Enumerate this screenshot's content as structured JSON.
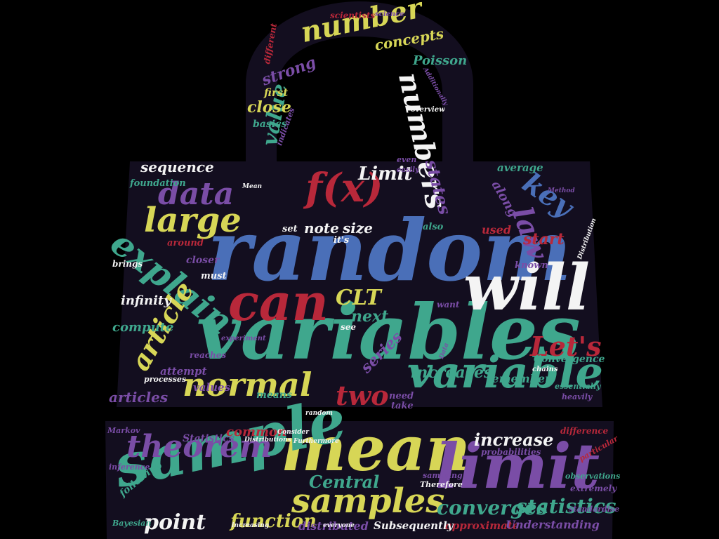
{
  "colors": {
    "background": "#000000",
    "bag_fill": "#130e1f",
    "palette": {
      "blue": "#4a6fb8",
      "red": "#b8283a",
      "yellow": "#d7d656",
      "teal": "#3fa78d",
      "purple": "#7a4da6",
      "white": "#f4f4f4"
    }
  },
  "words": [
    {
      "text": "random",
      "color": "blue"
    },
    {
      "text": "variables",
      "color": "teal"
    },
    {
      "text": "will",
      "color": "white"
    },
    {
      "text": "mean",
      "color": "yellow"
    },
    {
      "text": "limit",
      "color": "purple"
    },
    {
      "text": "sample",
      "color": "teal"
    },
    {
      "text": "can",
      "color": "red"
    },
    {
      "text": "variable",
      "color": "teal"
    },
    {
      "text": "samples",
      "color": "yellow"
    },
    {
      "text": "normal",
      "color": "yellow"
    },
    {
      "text": "theorem",
      "color": "purple"
    },
    {
      "text": "explain",
      "color": "teal"
    },
    {
      "text": "large",
      "color": "yellow"
    },
    {
      "text": "data",
      "color": "purple"
    },
    {
      "text": "numbers",
      "color": "white"
    },
    {
      "text": "number",
      "color": "yellow"
    },
    {
      "text": "law",
      "color": "purple"
    },
    {
      "text": "key",
      "color": "blue"
    },
    {
      "text": "f(x)",
      "color": "red"
    },
    {
      "text": "Let's",
      "color": "red"
    },
    {
      "text": "article",
      "color": "yellow"
    },
    {
      "text": "two",
      "color": "red"
    },
    {
      "text": "CLT",
      "color": "yellow"
    },
    {
      "text": "converges",
      "color": "teal"
    },
    {
      "text": "statistics",
      "color": "teal"
    },
    {
      "text": "point",
      "color": "white"
    },
    {
      "text": "function",
      "color": "yellow"
    },
    {
      "text": "Central",
      "color": "teal"
    },
    {
      "text": "increase",
      "color": "white"
    },
    {
      "text": "value",
      "color": "teal"
    },
    {
      "text": "Limit",
      "color": "white"
    },
    {
      "text": "series",
      "color": "purple"
    },
    {
      "text": "increases",
      "color": "teal"
    },
    {
      "text": "next",
      "color": "teal"
    },
    {
      "text": "states",
      "color": "purple"
    },
    {
      "text": "size",
      "color": "white"
    },
    {
      "text": "note",
      "color": "white"
    },
    {
      "text": "start",
      "color": "red"
    },
    {
      "text": "concepts",
      "color": "yellow"
    },
    {
      "text": "strong",
      "color": "purple"
    },
    {
      "text": "close",
      "color": "yellow"
    },
    {
      "text": "Poisson",
      "color": "teal"
    },
    {
      "text": "sequence",
      "color": "white"
    },
    {
      "text": "infinity",
      "color": "white"
    },
    {
      "text": "compute",
      "color": "teal"
    },
    {
      "text": "articles",
      "color": "purple"
    },
    {
      "text": "common",
      "color": "red"
    },
    {
      "text": "Statistics",
      "color": "purple"
    },
    {
      "text": "distributed",
      "color": "purple"
    },
    {
      "text": "approximate",
      "color": "red"
    },
    {
      "text": "Subsequently",
      "color": "white"
    },
    {
      "text": "Understanding",
      "color": "purple"
    },
    {
      "text": "remember",
      "color": "teal"
    },
    {
      "text": "Convergence",
      "color": "teal"
    },
    {
      "text": "average",
      "color": "teal"
    },
    {
      "text": "along",
      "color": "purple"
    },
    {
      "text": "used",
      "color": "red"
    },
    {
      "text": "foundation",
      "color": "teal"
    },
    {
      "text": "means",
      "color": "teal"
    },
    {
      "text": "values",
      "color": "purple"
    },
    {
      "text": "attempt",
      "color": "purple"
    },
    {
      "text": "first",
      "color": "yellow"
    },
    {
      "text": "basics",
      "color": "teal"
    },
    {
      "text": "scientists",
      "color": "red"
    },
    {
      "text": "science",
      "color": "purple"
    },
    {
      "text": "different",
      "color": "red"
    },
    {
      "text": "also",
      "color": "teal"
    },
    {
      "text": "set",
      "color": "white"
    },
    {
      "text": "it's",
      "color": "white"
    },
    {
      "text": "must",
      "color": "white"
    },
    {
      "text": "closer",
      "color": "purple"
    },
    {
      "text": "around",
      "color": "red"
    },
    {
      "text": "brings",
      "color": "white"
    },
    {
      "text": "known",
      "color": "purple"
    },
    {
      "text": "want",
      "color": "purple"
    },
    {
      "text": "reaches",
      "color": "purple"
    },
    {
      "text": "need",
      "color": "purple"
    },
    {
      "text": "take",
      "color": "purple"
    },
    {
      "text": "see",
      "color": "white"
    },
    {
      "text": "difference",
      "color": "red"
    },
    {
      "text": "particular",
      "color": "red"
    },
    {
      "text": "extremely",
      "color": "purple"
    },
    {
      "text": "probabilities",
      "color": "purple"
    },
    {
      "text": "sampling",
      "color": "purple"
    },
    {
      "text": "Therefore",
      "color": "white"
    },
    {
      "text": "standardise",
      "color": "purple"
    },
    {
      "text": "observations",
      "color": "teal"
    },
    {
      "text": "following",
      "color": "teal"
    },
    {
      "text": "Bayesian",
      "color": "teal"
    },
    {
      "text": "inference",
      "color": "purple"
    },
    {
      "text": "Markov",
      "color": "purple"
    },
    {
      "text": "heavily",
      "color": "purple"
    },
    {
      "text": "essentially",
      "color": "teal"
    },
    {
      "text": "easily",
      "color": "purple"
    },
    {
      "text": "even",
      "color": "purple"
    },
    {
      "text": "overview",
      "color": "white"
    },
    {
      "text": "processes",
      "color": "white"
    },
    {
      "text": "chains",
      "color": "white"
    },
    {
      "text": "everyone",
      "color": "white"
    },
    {
      "text": "increasing",
      "color": "white"
    },
    {
      "text": "experiment",
      "color": "purple"
    },
    {
      "text": "Data",
      "color": "purple"
    },
    {
      "text": "Consider",
      "color": "white"
    },
    {
      "text": "Furthermore",
      "color": "white"
    },
    {
      "text": "Distributions",
      "color": "white"
    },
    {
      "text": "random",
      "color": "white"
    },
    {
      "text": "Distribution",
      "color": "white"
    },
    {
      "text": "Method",
      "color": "purple"
    },
    {
      "text": "Mean",
      "color": "white"
    },
    {
      "text": "indicates",
      "color": "purple"
    },
    {
      "text": "Additionally",
      "color": "purple"
    }
  ]
}
